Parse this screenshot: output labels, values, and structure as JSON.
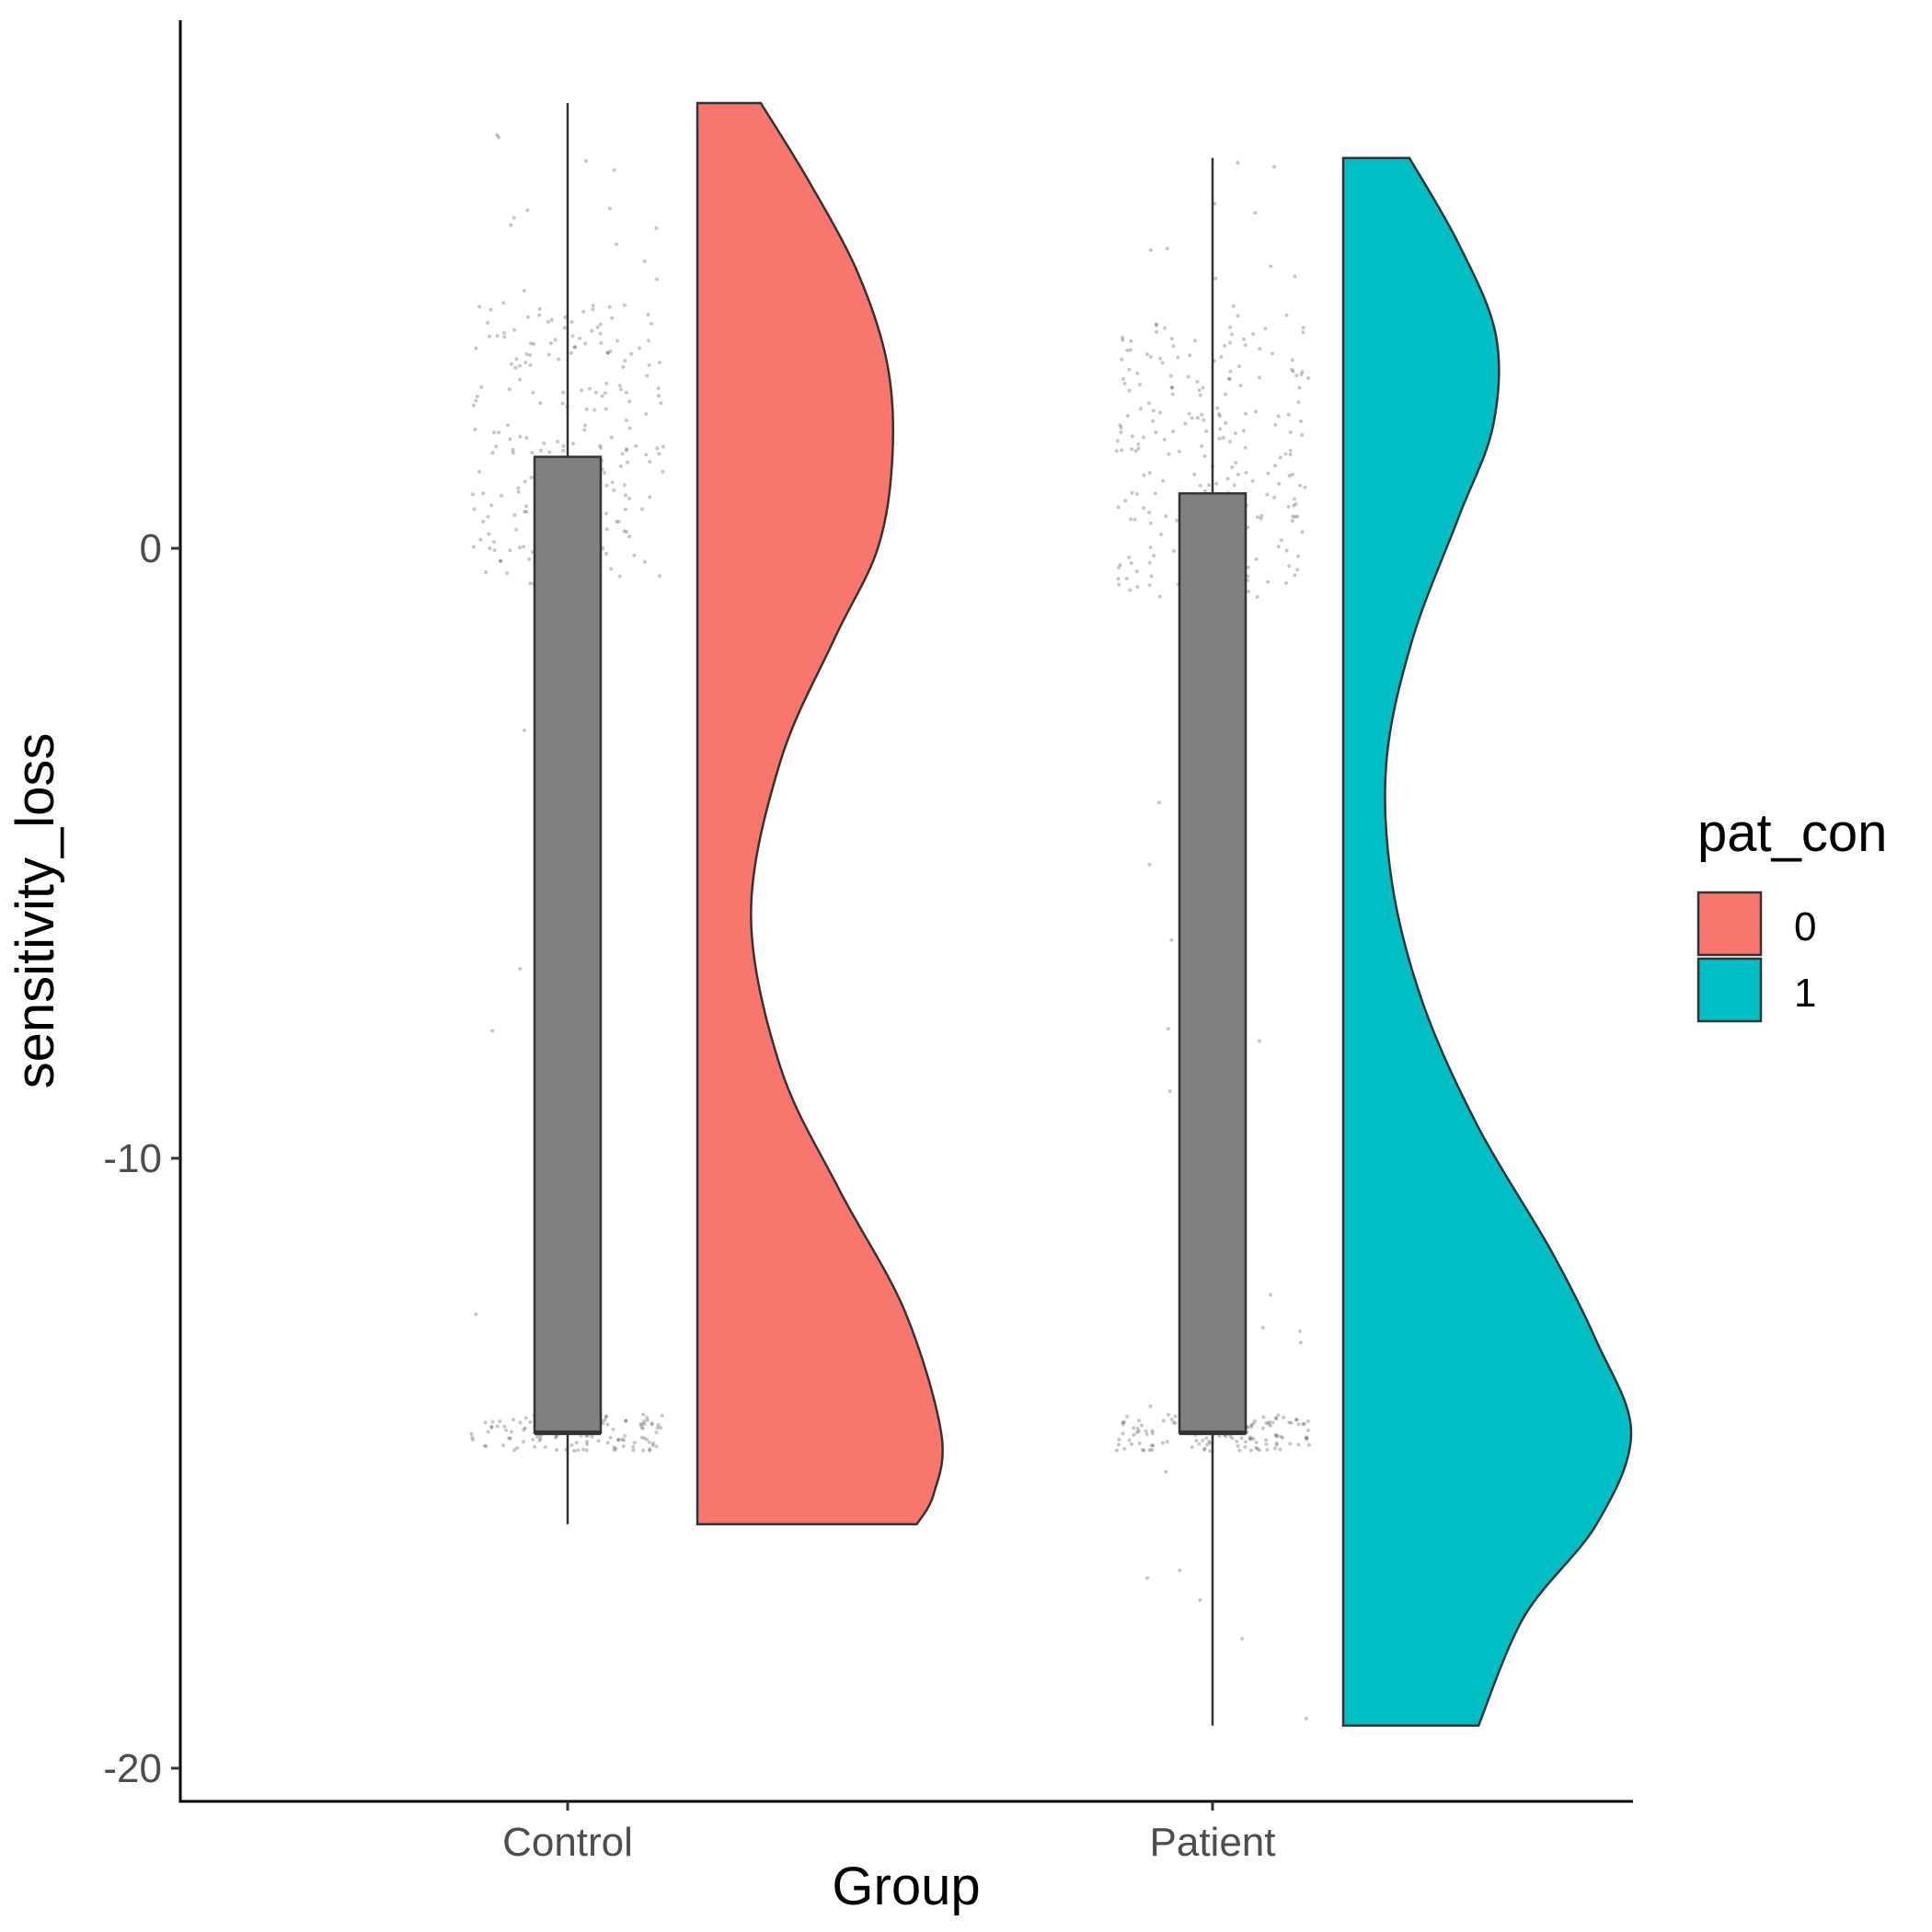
{
  "chart_data": {
    "type": "raincloud",
    "xlabel": "Group",
    "ylabel": "sensitivity_loss",
    "ylim": [
      -20.6,
      8.6
    ],
    "yticks": [
      0,
      -10,
      -20
    ],
    "categories": [
      "Control",
      "Patient"
    ],
    "legend": {
      "title": "pat_con",
      "placement": "right",
      "entries": [
        {
          "label": "0",
          "color": "#F8766D"
        },
        {
          "label": "1",
          "color": "#00BFC4"
        }
      ]
    },
    "series": [
      {
        "group": "Control",
        "pat_con": "0",
        "color": "#F8766D",
        "whisker": [
          -16.0,
          7.3
        ],
        "box": [
          -14.5,
          1.5
        ],
        "median": -14.5,
        "violin_range": [
          -16.0,
          7.3
        ],
        "density_profile": [
          {
            "y": 7.3,
            "w": 0.26
          },
          {
            "y": 6.0,
            "w": 0.46
          },
          {
            "y": 4.5,
            "w": 0.66
          },
          {
            "y": 3.0,
            "w": 0.78
          },
          {
            "y": 1.5,
            "w": 0.8
          },
          {
            "y": 0.0,
            "w": 0.74
          },
          {
            "y": -1.5,
            "w": 0.56
          },
          {
            "y": -3.5,
            "w": 0.34
          },
          {
            "y": -6.0,
            "w": 0.22
          },
          {
            "y": -8.5,
            "w": 0.34
          },
          {
            "y": -10.5,
            "w": 0.58
          },
          {
            "y": -12.5,
            "w": 0.85
          },
          {
            "y": -14.5,
            "w": 1.0
          },
          {
            "y": -15.5,
            "w": 0.97
          },
          {
            "y": -16.0,
            "w": 0.9
          }
        ],
        "point_clusters": [
          {
            "y_min": -0.6,
            "y_max": 4.0,
            "count": 220
          },
          {
            "y_min": 4.0,
            "y_max": 7.3,
            "count": 14
          },
          {
            "y_min": -14.8,
            "y_max": -14.2,
            "count": 120
          },
          {
            "y_min": -16.0,
            "y_max": -0.6,
            "count": 10
          }
        ]
      },
      {
        "group": "Patient",
        "pat_con": "1",
        "color": "#00BFC4",
        "whisker": [
          -19.3,
          6.4
        ],
        "box": [
          -14.5,
          0.9
        ],
        "median": -14.5,
        "violin_range": [
          -19.3,
          6.4
        ],
        "density_profile": [
          {
            "y": 6.4,
            "w": 0.23
          },
          {
            "y": 5.0,
            "w": 0.4
          },
          {
            "y": 3.5,
            "w": 0.53
          },
          {
            "y": 2.0,
            "w": 0.52
          },
          {
            "y": 0.5,
            "w": 0.4
          },
          {
            "y": -1.5,
            "w": 0.24
          },
          {
            "y": -3.5,
            "w": 0.15
          },
          {
            "y": -5.5,
            "w": 0.17
          },
          {
            "y": -7.5,
            "w": 0.28
          },
          {
            "y": -9.5,
            "w": 0.47
          },
          {
            "y": -11.5,
            "w": 0.72
          },
          {
            "y": -13.0,
            "w": 0.88
          },
          {
            "y": -14.5,
            "w": 1.0
          },
          {
            "y": -16.0,
            "w": 0.88
          },
          {
            "y": -17.5,
            "w": 0.63
          },
          {
            "y": -19.3,
            "w": 0.47
          }
        ],
        "point_clusters": [
          {
            "y_min": -0.8,
            "y_max": 3.8,
            "count": 230
          },
          {
            "y_min": 3.8,
            "y_max": 6.4,
            "count": 12
          },
          {
            "y_min": -14.8,
            "y_max": -14.2,
            "count": 130
          },
          {
            "y_min": -19.3,
            "y_max": -0.8,
            "count": 22
          }
        ]
      }
    ]
  }
}
